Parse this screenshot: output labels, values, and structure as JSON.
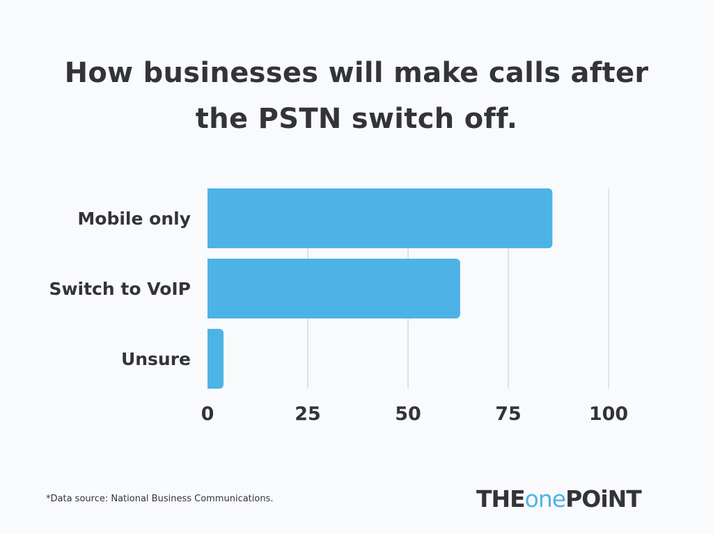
{
  "chart_data": {
    "type": "bar",
    "orientation": "horizontal",
    "title": "How businesses will make calls after the PSTN switch off.",
    "title_lines": [
      "How businesses will make calls after",
      "the PSTN switch off."
    ],
    "categories": [
      "Mobile only",
      "Switch to VoIP",
      "Unsure"
    ],
    "values": [
      86,
      63,
      4
    ],
    "xlim": [
      0,
      100
    ],
    "xticks": [
      "0",
      "25",
      "50",
      "75",
      "100"
    ],
    "xlabel": "",
    "ylabel": "",
    "grid": "vertical",
    "bar_color": "#4db3e6",
    "grid_color": "#cfd3d9"
  },
  "footnote": "*Data source: National Business Communications.",
  "logo": {
    "part1": "THE",
    "part2": "one",
    "part3": "POiNT",
    "text": "THEONEPOINT",
    "accent": "#4db3e6"
  }
}
